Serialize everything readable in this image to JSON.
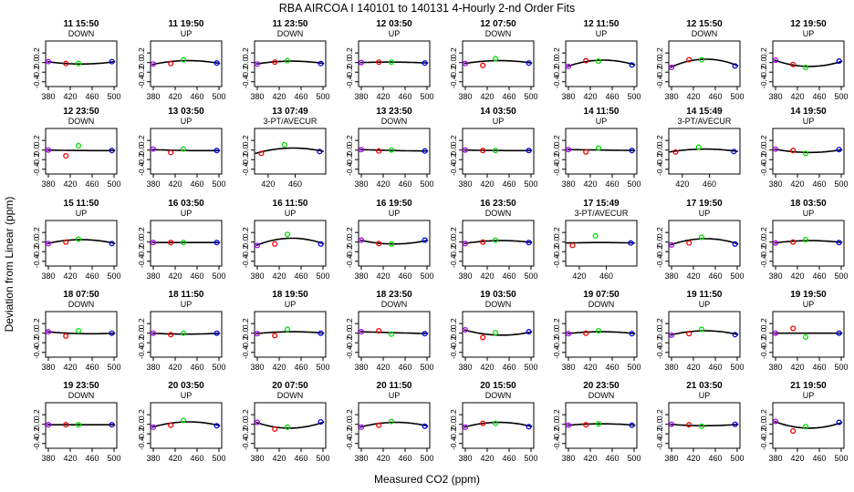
{
  "chart_data": {
    "type": "scatter",
    "title": "RBA   AIRCOA I   140101 to 140131   4-Hourly 2-nd Order Fits",
    "xlabel": "Measured CO2 (ppm)",
    "ylabel": "Deviation from Linear (ppm)",
    "ylim": [
      -0.5,
      0.45
    ],
    "yticks": [
      -0.4,
      -0.2,
      0.0,
      0.2
    ],
    "ytick_labels": [
      "-0.4",
      "-0.2",
      "0.0",
      "0.2"
    ],
    "xlim_full": [
      375,
      505
    ],
    "xticks_full": [
      380,
      420,
      460,
      500
    ],
    "xlim_3pt": [
      400,
      505
    ],
    "xticks_3pt": [
      420,
      460
    ],
    "marker_colors": {
      "first": "#aa00ff",
      "second": "#ee0000",
      "third": "#00dd00",
      "fourth": "#0000dd"
    },
    "panels": [
      {
        "label": "11 15:50",
        "mode": "DOWN",
        "points": [
          [
            380,
            0.02
          ],
          [
            412,
            -0.02
          ],
          [
            435,
            -0.02
          ],
          [
            496,
            0.02
          ]
        ],
        "curve": [
          0.02,
          -0.03,
          0.02
        ]
      },
      {
        "label": "11 19:50",
        "mode": "UP",
        "points": [
          [
            380,
            -0.03
          ],
          [
            412,
            -0.02
          ],
          [
            435,
            0.06
          ],
          [
            496,
            -0.01
          ]
        ],
        "curve": [
          -0.04,
          0.04,
          -0.02
        ]
      },
      {
        "label": "11 23:50",
        "mode": "DOWN",
        "points": [
          [
            380,
            -0.03
          ],
          [
            412,
            0.01
          ],
          [
            435,
            0.04
          ],
          [
            496,
            -0.02
          ]
        ],
        "curve": [
          -0.03,
          0.03,
          -0.02
        ]
      },
      {
        "label": "12 03:50",
        "mode": "UP",
        "points": [
          [
            380,
            0.0
          ],
          [
            412,
            0.01
          ],
          [
            435,
            0.01
          ],
          [
            496,
            -0.01
          ]
        ],
        "curve": [
          0.0,
          0.01,
          -0.01
        ]
      },
      {
        "label": "12 07:50",
        "mode": "DOWN",
        "points": [
          [
            380,
            -0.02
          ],
          [
            412,
            -0.06
          ],
          [
            435,
            0.08
          ],
          [
            496,
            -0.01
          ]
        ],
        "curve": [
          -0.02,
          0.04,
          -0.01
        ]
      },
      {
        "label": "12 11:50",
        "mode": "UP",
        "points": [
          [
            380,
            -0.08
          ],
          [
            412,
            0.04
          ],
          [
            435,
            0.03
          ],
          [
            496,
            -0.05
          ]
        ],
        "curve": [
          -0.08,
          0.05,
          -0.05
        ]
      },
      {
        "label": "12 15:50",
        "mode": "DOWN",
        "points": [
          [
            380,
            -0.1
          ],
          [
            412,
            0.06
          ],
          [
            435,
            0.06
          ],
          [
            496,
            -0.07
          ]
        ],
        "curve": [
          -0.1,
          0.07,
          -0.07
        ]
      },
      {
        "label": "12 19:50",
        "mode": "UP",
        "points": [
          [
            380,
            0.05
          ],
          [
            412,
            -0.04
          ],
          [
            435,
            -0.1
          ],
          [
            496,
            0.03
          ]
        ],
        "curve": [
          0.05,
          -0.08,
          0.03
        ]
      },
      {
        "label": "12 23:50",
        "mode": "DOWN",
        "points": [
          [
            380,
            0.0
          ],
          [
            412,
            -0.12
          ],
          [
            435,
            0.09
          ],
          [
            496,
            -0.01
          ]
        ],
        "curve": [
          0.0,
          -0.01,
          -0.01
        ]
      },
      {
        "label": "13 03:50",
        "mode": "UP",
        "points": [
          [
            380,
            0.02
          ],
          [
            412,
            -0.05
          ],
          [
            435,
            0.02
          ],
          [
            496,
            -0.01
          ]
        ],
        "curve": [
          0.01,
          -0.01,
          -0.01
        ]
      },
      {
        "label": "13 07:49",
        "mode": "3-PT/AVECUR",
        "points": [
          [
            410,
            -0.07
          ],
          [
            444,
            0.11
          ],
          [
            496,
            -0.03
          ]
        ],
        "curve": [
          -0.07,
          0.04,
          -0.03
        ]
      },
      {
        "label": "13 23:50",
        "mode": "DOWN",
        "points": [
          [
            380,
            0.01
          ],
          [
            412,
            -0.02
          ],
          [
            435,
            0.0
          ],
          [
            496,
            -0.02
          ]
        ],
        "curve": [
          0.01,
          -0.01,
          -0.02
        ]
      },
      {
        "label": "14 03:50",
        "mode": "UP",
        "points": [
          [
            380,
            0.0
          ],
          [
            412,
            -0.01
          ],
          [
            435,
            -0.01
          ],
          [
            496,
            -0.01
          ]
        ],
        "curve": [
          0.0,
          -0.01,
          -0.01
        ]
      },
      {
        "label": "14 11:50",
        "mode": "UP",
        "points": [
          [
            380,
            0.01
          ],
          [
            412,
            -0.04
          ],
          [
            435,
            0.04
          ],
          [
            496,
            -0.01
          ]
        ],
        "curve": [
          0.01,
          0.0,
          -0.01
        ]
      },
      {
        "label": "14 15:49",
        "mode": "3-PT/AVECUR",
        "points": [
          [
            410,
            -0.04
          ],
          [
            444,
            0.06
          ],
          [
            496,
            -0.03
          ]
        ],
        "curve": [
          -0.04,
          0.02,
          -0.03
        ]
      },
      {
        "label": "14 19:50",
        "mode": "UP",
        "points": [
          [
            380,
            0.02
          ],
          [
            412,
            -0.01
          ],
          [
            435,
            -0.07
          ],
          [
            496,
            0.01
          ]
        ],
        "curve": [
          0.02,
          -0.05,
          0.01
        ]
      },
      {
        "label": "15 11:50",
        "mode": "UP",
        "points": [
          [
            380,
            -0.03
          ],
          [
            412,
            0.0
          ],
          [
            435,
            0.06
          ],
          [
            496,
            -0.03
          ]
        ],
        "curve": [
          -0.03,
          0.05,
          -0.03
        ]
      },
      {
        "label": "16 03:50",
        "mode": "UP",
        "points": [
          [
            380,
            -0.01
          ],
          [
            412,
            -0.01
          ],
          [
            435,
            -0.01
          ],
          [
            496,
            -0.01
          ]
        ],
        "curve": [
          -0.01,
          -0.01,
          -0.01
        ]
      },
      {
        "label": "16 11:50",
        "mode": "UP",
        "points": [
          [
            380,
            -0.07
          ],
          [
            412,
            -0.04
          ],
          [
            435,
            0.16
          ],
          [
            496,
            -0.04
          ]
        ],
        "curve": [
          -0.07,
          0.08,
          -0.04
        ]
      },
      {
        "label": "16 19:50",
        "mode": "UP",
        "points": [
          [
            380,
            0.04
          ],
          [
            412,
            -0.03
          ],
          [
            435,
            -0.04
          ],
          [
            496,
            0.04
          ]
        ],
        "curve": [
          0.04,
          -0.04,
          0.04
        ]
      },
      {
        "label": "16 23:50",
        "mode": "DOWN",
        "points": [
          [
            380,
            -0.03
          ],
          [
            412,
            0.0
          ],
          [
            435,
            0.04
          ],
          [
            496,
            -0.01
          ]
        ],
        "curve": [
          -0.03,
          0.03,
          -0.01
        ]
      },
      {
        "label": "17 15:49",
        "mode": "3-PT/AVECUR",
        "points": [
          [
            410,
            -0.07
          ],
          [
            444,
            0.13
          ],
          [
            496,
            -0.02
          ]
        ],
        "curve": [
          -0.02,
          -0.01,
          -0.02
        ]
      },
      {
        "label": "17 19:50",
        "mode": "UP",
        "points": [
          [
            380,
            -0.06
          ],
          [
            412,
            -0.02
          ],
          [
            435,
            0.1
          ],
          [
            496,
            -0.04
          ]
        ],
        "curve": [
          -0.06,
          0.07,
          -0.04
        ]
      },
      {
        "label": "18 03:50",
        "mode": "UP",
        "points": [
          [
            380,
            -0.02
          ],
          [
            412,
            0.0
          ],
          [
            435,
            0.05
          ],
          [
            496,
            -0.01
          ]
        ],
        "curve": [
          -0.02,
          0.03,
          -0.01
        ]
      },
      {
        "label": "18 07:50",
        "mode": "DOWN",
        "points": [
          [
            380,
            0.03
          ],
          [
            412,
            -0.06
          ],
          [
            435,
            0.05
          ],
          [
            496,
            0.0
          ]
        ],
        "curve": [
          0.03,
          -0.01,
          0.0
        ]
      },
      {
        "label": "18 11:50",
        "mode": "UP",
        "points": [
          [
            380,
            0.0
          ],
          [
            412,
            -0.03
          ],
          [
            435,
            0.0
          ],
          [
            496,
            0.0
          ]
        ],
        "curve": [
          0.0,
          -0.02,
          0.0
        ]
      },
      {
        "label": "18 19:50",
        "mode": "UP",
        "points": [
          [
            380,
            -0.01
          ],
          [
            412,
            -0.05
          ],
          [
            435,
            0.08
          ],
          [
            496,
            0.0
          ]
        ],
        "curve": [
          -0.01,
          0.03,
          0.0
        ]
      },
      {
        "label": "18 23:50",
        "mode": "DOWN",
        "points": [
          [
            380,
            0.03
          ],
          [
            412,
            0.05
          ],
          [
            435,
            -0.02
          ],
          [
            496,
            -0.01
          ]
        ],
        "curve": [
          0.03,
          0.01,
          -0.01
        ]
      },
      {
        "label": "19 03:50",
        "mode": "DOWN",
        "points": [
          [
            380,
            0.07
          ],
          [
            412,
            -0.09
          ],
          [
            435,
            0.01
          ],
          [
            496,
            0.03
          ]
        ],
        "curve": [
          0.07,
          -0.04,
          0.03
        ]
      },
      {
        "label": "19 07:50",
        "mode": "DOWN",
        "points": [
          [
            380,
            -0.01
          ],
          [
            412,
            0.0
          ],
          [
            435,
            0.05
          ],
          [
            496,
            -0.01
          ]
        ],
        "curve": [
          -0.01,
          0.03,
          -0.01
        ]
      },
      {
        "label": "19 11:50",
        "mode": "UP",
        "points": [
          [
            380,
            -0.04
          ],
          [
            412,
            -0.01
          ],
          [
            435,
            0.08
          ],
          [
            496,
            -0.03
          ]
        ],
        "curve": [
          -0.04,
          0.05,
          -0.03
        ]
      },
      {
        "label": "19 19:50",
        "mode": "UP",
        "points": [
          [
            380,
            0.0
          ],
          [
            412,
            0.1
          ],
          [
            435,
            -0.08
          ],
          [
            496,
            0.0
          ]
        ],
        "curve": [
          0.0,
          0.0,
          0.0
        ]
      },
      {
        "label": "19 23:50",
        "mode": "DOWN",
        "points": [
          [
            380,
            -0.01
          ],
          [
            412,
            -0.01
          ],
          [
            435,
            -0.01
          ],
          [
            496,
            -0.01
          ]
        ],
        "curve": [
          -0.01,
          -0.01,
          -0.01
        ]
      },
      {
        "label": "20 03:50",
        "mode": "UP",
        "points": [
          [
            380,
            -0.06
          ],
          [
            412,
            -0.02
          ],
          [
            435,
            0.08
          ],
          [
            496,
            -0.03
          ]
        ],
        "curve": [
          -0.06,
          0.05,
          -0.03
        ]
      },
      {
        "label": "20 07:50",
        "mode": "DOWN",
        "points": [
          [
            380,
            0.04
          ],
          [
            412,
            -0.1
          ],
          [
            435,
            -0.06
          ],
          [
            496,
            0.05
          ]
        ],
        "curve": [
          0.04,
          -0.08,
          0.05
        ]
      },
      {
        "label": "20 11:50",
        "mode": "UP",
        "points": [
          [
            380,
            -0.06
          ],
          [
            412,
            -0.02
          ],
          [
            435,
            0.06
          ],
          [
            496,
            -0.04
          ]
        ],
        "curve": [
          -0.06,
          0.04,
          -0.04
        ]
      },
      {
        "label": "20 15:50",
        "mode": "DOWN",
        "points": [
          [
            380,
            -0.06
          ],
          [
            412,
            0.02
          ],
          [
            435,
            0.02
          ],
          [
            496,
            -0.05
          ]
        ],
        "curve": [
          -0.06,
          0.04,
          -0.05
        ]
      },
      {
        "label": "20 23:50",
        "mode": "DOWN",
        "points": [
          [
            380,
            -0.02
          ],
          [
            412,
            -0.01
          ],
          [
            435,
            0.01
          ],
          [
            496,
            -0.02
          ]
        ],
        "curve": [
          -0.02,
          0.01,
          -0.02
        ]
      },
      {
        "label": "21 03:50",
        "mode": "UP",
        "points": [
          [
            380,
            0.0
          ],
          [
            412,
            -0.01
          ],
          [
            435,
            -0.04
          ],
          [
            496,
            0.0
          ]
        ],
        "curve": [
          0.0,
          -0.03,
          0.0
        ]
      },
      {
        "label": "21 19:50",
        "mode": "UP",
        "points": [
          [
            380,
            0.06
          ],
          [
            412,
            -0.14
          ],
          [
            435,
            -0.05
          ],
          [
            496,
            0.04
          ]
        ],
        "curve": [
          0.06,
          -0.08,
          0.04
        ]
      }
    ]
  }
}
